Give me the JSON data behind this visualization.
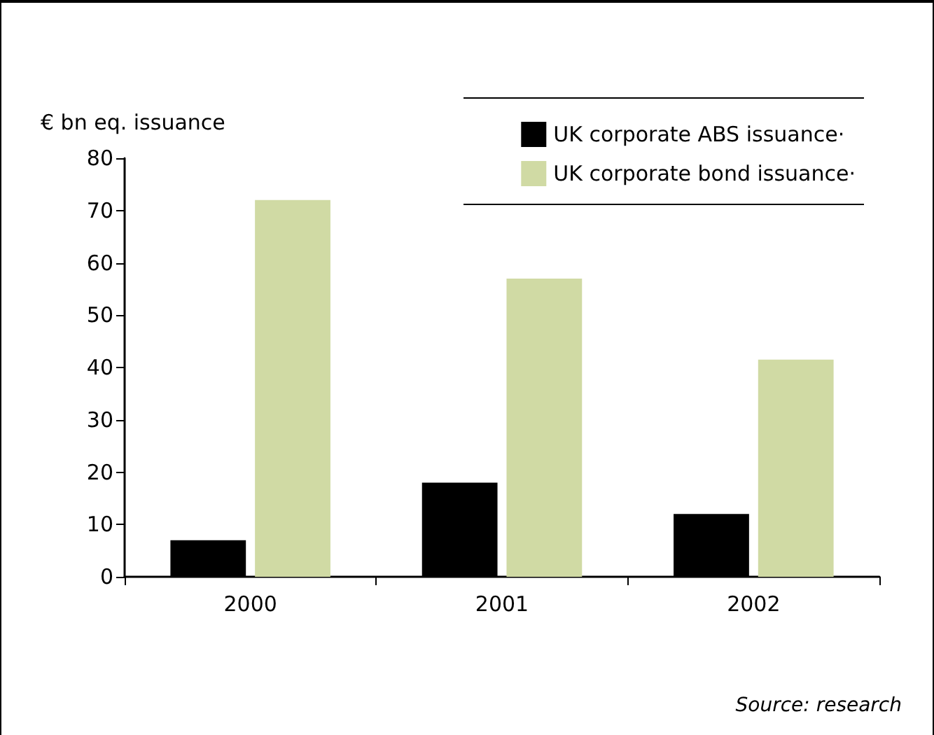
{
  "chart_data": {
    "type": "bar",
    "ylabel": "€ bn eq. issuance",
    "categories": [
      "2000",
      "2001",
      "2002"
    ],
    "series": [
      {
        "name": "UK corporate ABS issuance·",
        "color": "#000000",
        "values": [
          7,
          18,
          12
        ]
      },
      {
        "name": "UK corporate bond issuance·",
        "color": "#d0daa4",
        "values": [
          72,
          57,
          41.5
        ]
      }
    ],
    "ylim": [
      0,
      80
    ],
    "yticks": [
      0,
      10,
      20,
      30,
      40,
      50,
      60,
      70,
      80
    ],
    "grid": false,
    "legend": "top right",
    "annotations": [
      "Source: research"
    ]
  }
}
